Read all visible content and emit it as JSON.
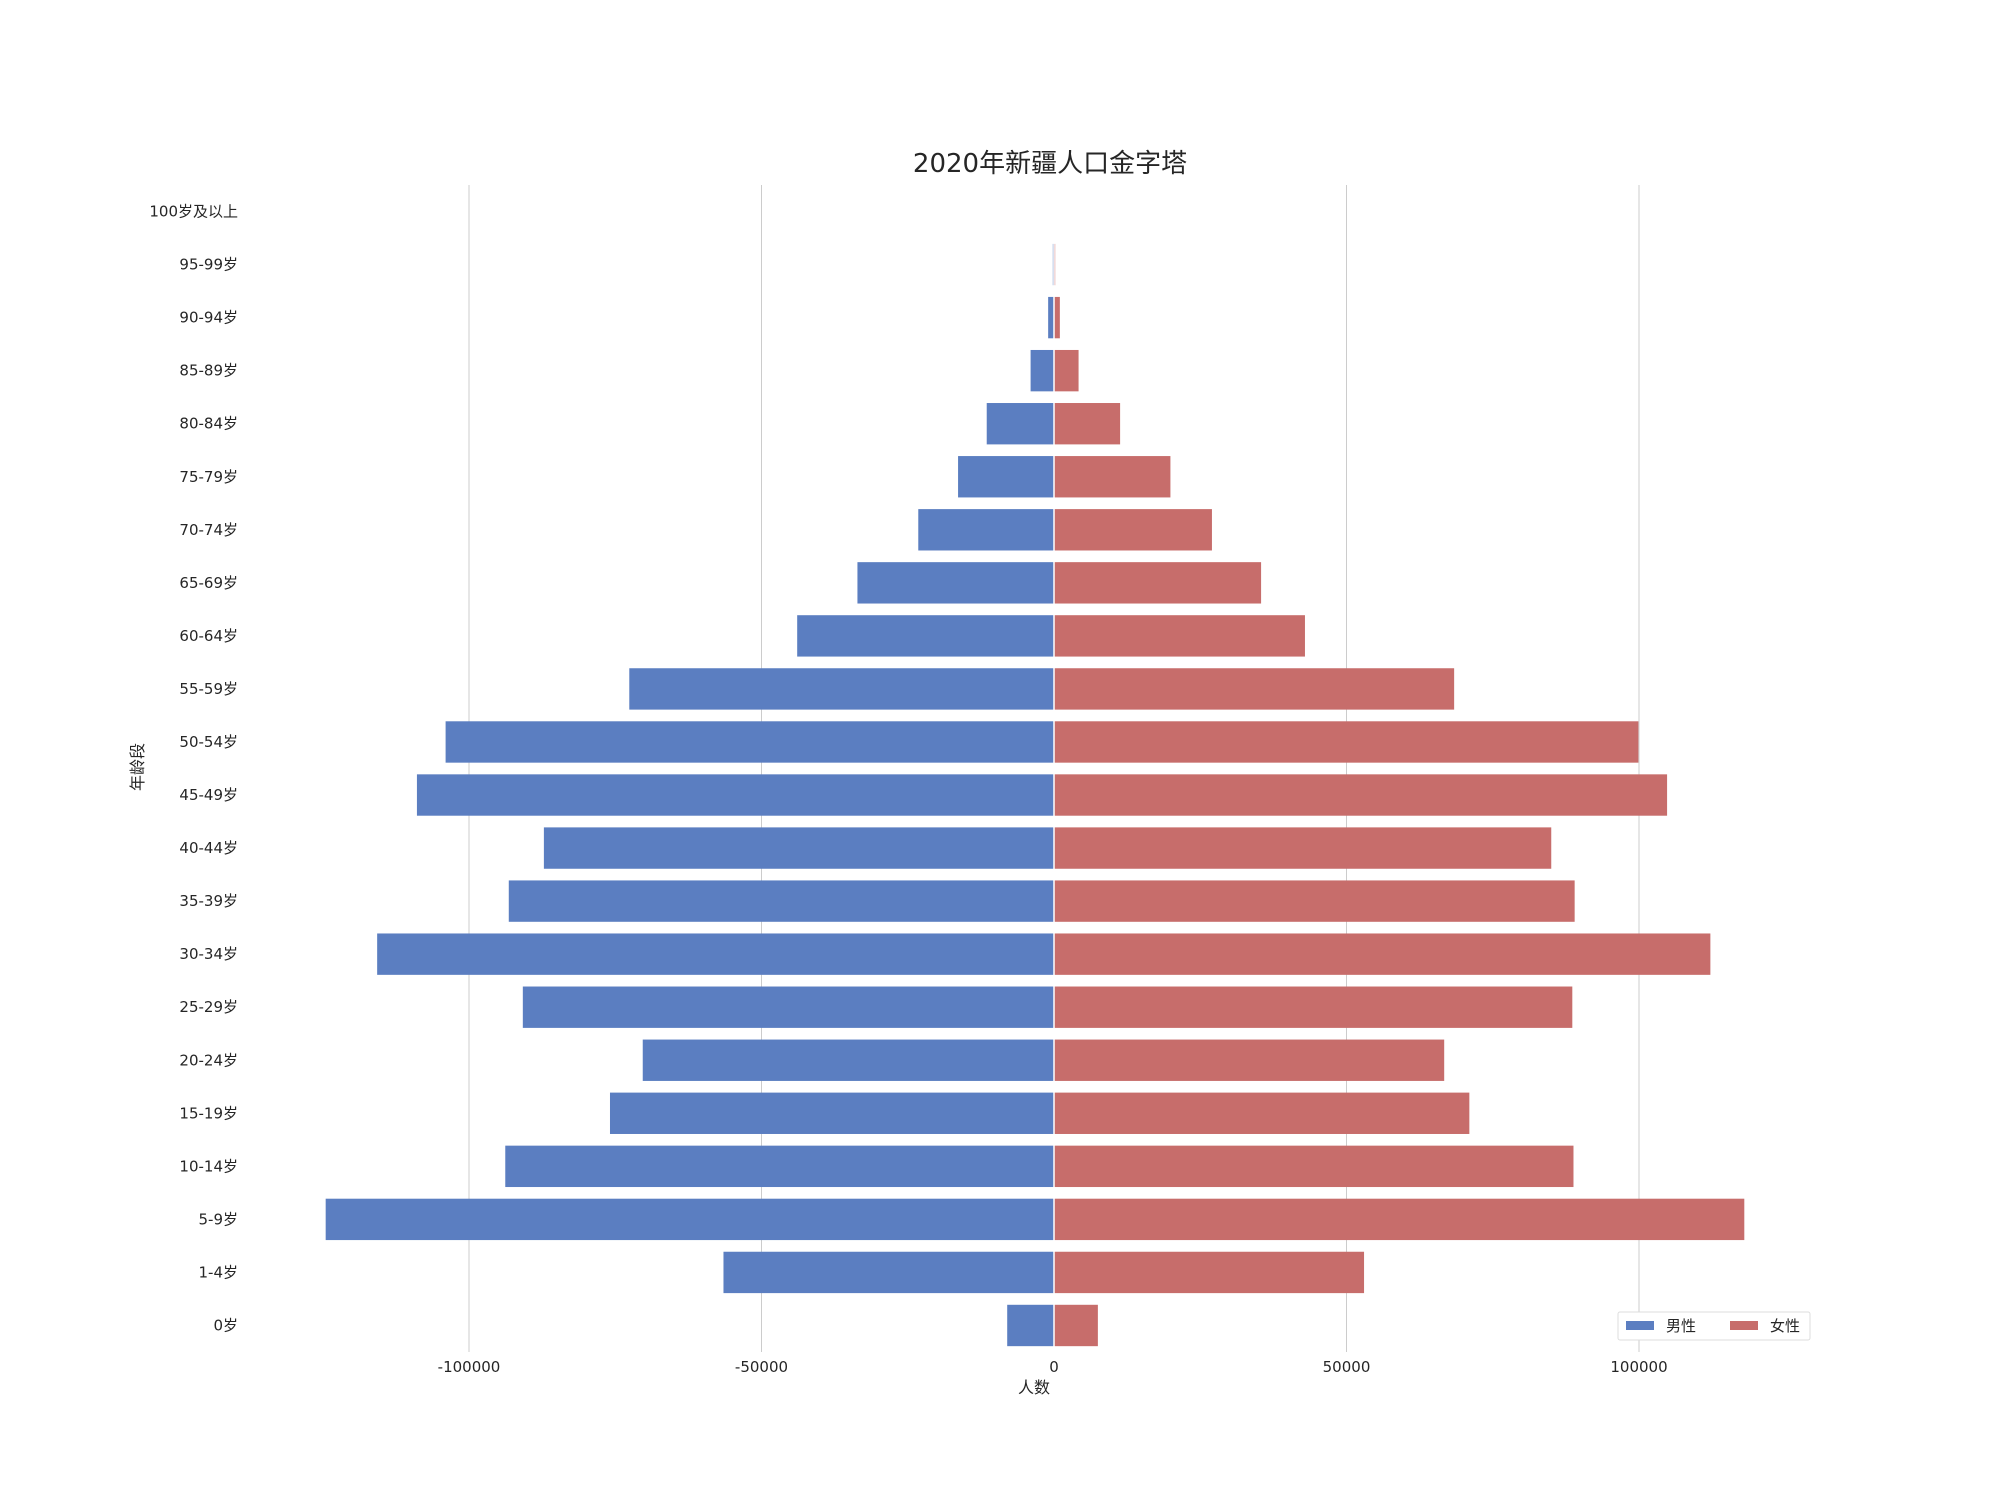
{
  "chart_data": {
    "type": "bar",
    "orientation": "horizontal",
    "title": "2020年新疆人口金字塔",
    "xlabel": "人数",
    "ylabel": "年龄段",
    "xlim": [
      -140000,
      127000
    ],
    "xticks": [
      -100000,
      -50000,
      0,
      50000,
      100000
    ],
    "grid": "vertical",
    "legend_position": "bottom-right",
    "categories": [
      "0岁",
      "1-4岁",
      "5-9岁",
      "10-14岁",
      "15-19岁",
      "20-24岁",
      "25-29岁",
      "30-34岁",
      "35-39岁",
      "40-44岁",
      "45-49岁",
      "50-54岁",
      "55-59岁",
      "60-64岁",
      "65-69岁",
      "70-74岁",
      "75-79岁",
      "80-84岁",
      "85-89岁",
      "90-94岁",
      "95-99岁",
      "100岁及以上"
    ],
    "series": [
      {
        "name": "男性",
        "color": "#5b7ec1",
        "values": [
          -8000,
          -56500,
          -124500,
          -93800,
          -75900,
          -70300,
          -90800,
          -115700,
          -93200,
          -87200,
          -108900,
          -104000,
          -72600,
          -43900,
          -33600,
          -23200,
          -16400,
          -11500,
          -4000,
          -1000,
          -200,
          -30
        ]
      },
      {
        "name": "女性",
        "color": "#c76d6b",
        "values": [
          7500,
          53000,
          118000,
          88800,
          71000,
          66700,
          88600,
          112200,
          89000,
          85000,
          104800,
          99900,
          68400,
          42900,
          35400,
          27000,
          19900,
          11300,
          4200,
          1000,
          200,
          30
        ]
      }
    ]
  }
}
